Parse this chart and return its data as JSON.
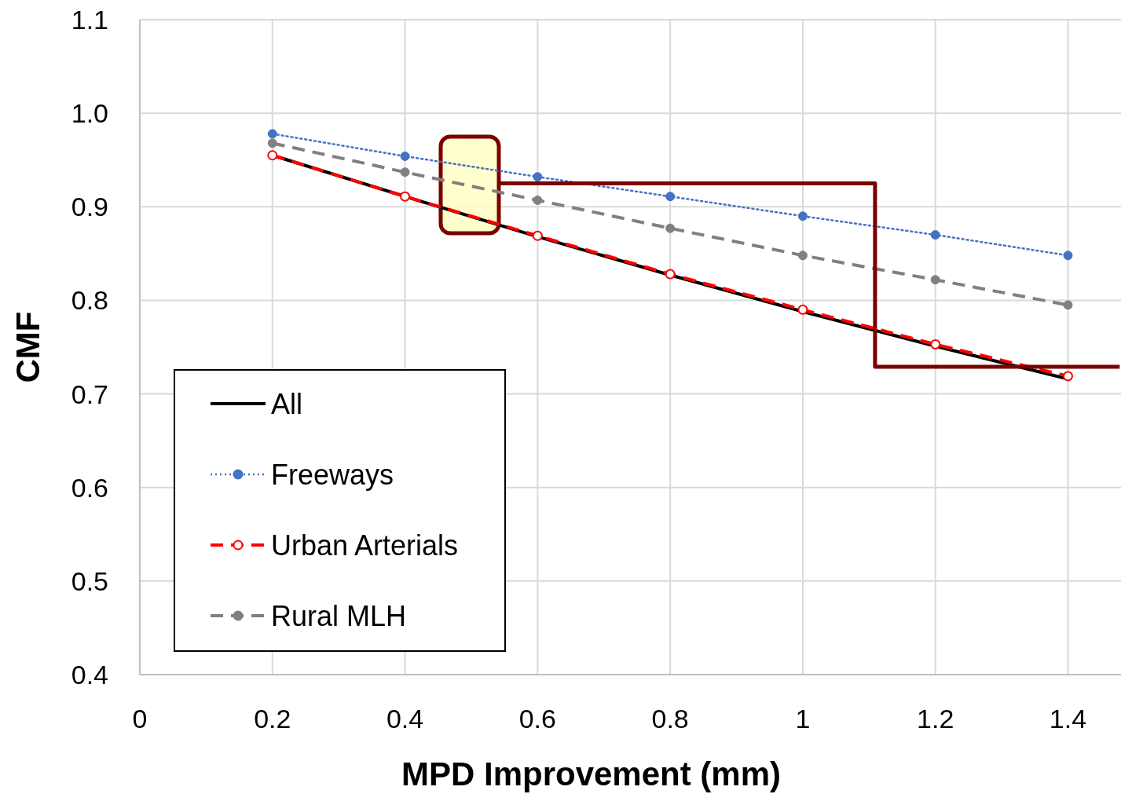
{
  "chart_data": {
    "type": "line",
    "xlabel": "MPD Improvement (mm)",
    "ylabel": "CMF",
    "x": [
      0.2,
      0.4,
      0.6,
      0.8,
      1,
      1.2,
      1.4
    ],
    "xlim": [
      0,
      1.48
    ],
    "xticks": [
      0,
      0.2,
      0.4,
      0.6,
      0.8,
      1,
      1.2,
      1.4
    ],
    "ylim": [
      0.4,
      1.1
    ],
    "yticks": [
      {
        "value": 0.4,
        "label": "0.4"
      },
      {
        "value": 0.5,
        "label": "0.5"
      },
      {
        "value": 0.6,
        "label": "0.6"
      },
      {
        "value": 0.7,
        "label": "0.7"
      },
      {
        "value": 0.8,
        "label": "0.8"
      },
      {
        "value": 0.9,
        "label": "0.9"
      },
      {
        "value": 1.0,
        "label": "1.0"
      },
      {
        "value": 1.1,
        "label": "1.1"
      }
    ],
    "grid": true,
    "legend": "bottom left",
    "series": [
      {
        "name": "All",
        "color": "#000000",
        "marker": "none",
        "line_style": "solid",
        "values": [
          0.955,
          0.911,
          0.868,
          0.827,
          0.788,
          0.751,
          0.716
        ]
      },
      {
        "name": "Freeways",
        "color": "#4472c4",
        "marker": "circle",
        "line_style": "dotted",
        "values": [
          0.978,
          0.954,
          0.932,
          0.911,
          0.89,
          0.87,
          0.848
        ]
      },
      {
        "name": "Urban Arterials",
        "color": "#ff0000",
        "marker": "circle",
        "line_style": "dashed",
        "values": [
          0.955,
          0.911,
          0.869,
          0.828,
          0.79,
          0.753,
          0.719
        ]
      },
      {
        "name": "Rural MLH",
        "color": "#808080",
        "marker": "circle",
        "line_style": "dashed",
        "values": [
          0.968,
          0.937,
          0.907,
          0.877,
          0.848,
          0.822,
          0.795
        ]
      },
      {
        "type": "step",
        "color": "#7b0000",
        "line_style": "solid",
        "x": [
          0.541,
          1.109,
          1.478
        ],
        "values": [
          0.925,
          0.729,
          0.729
        ]
      }
    ]
  }
}
